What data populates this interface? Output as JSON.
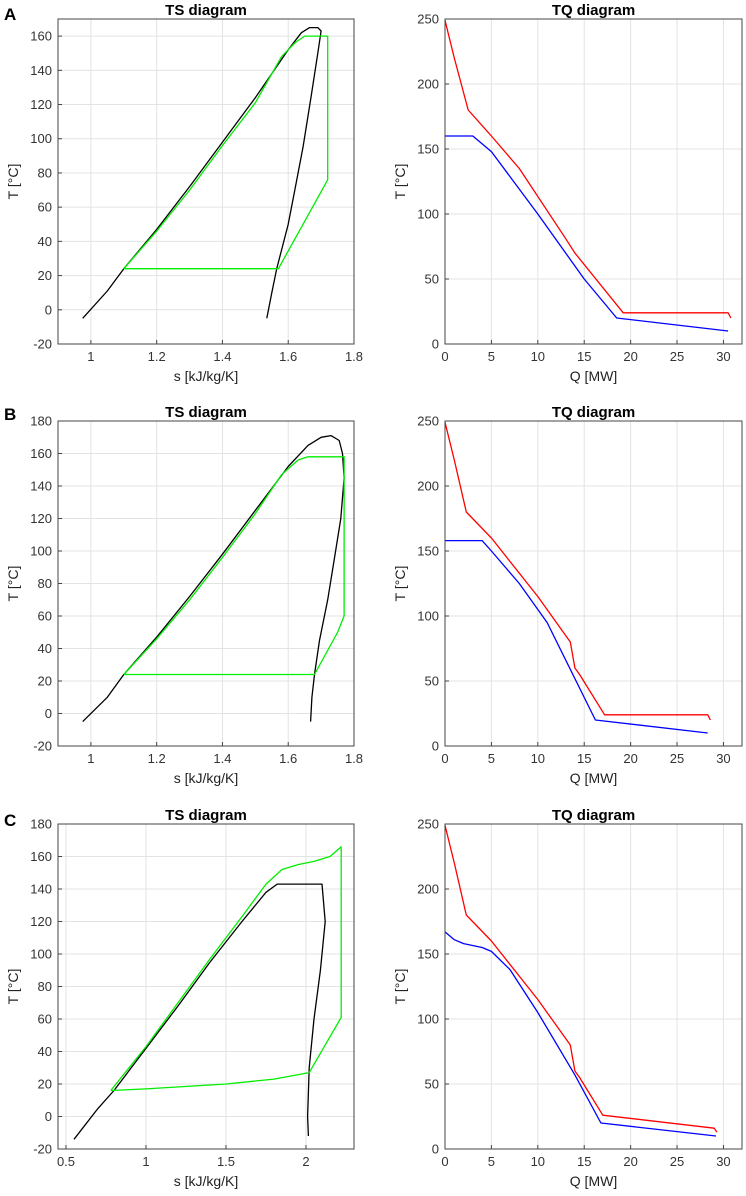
{
  "panel_labels": [
    "A",
    "B",
    "C"
  ],
  "chart_data": [
    {
      "id": "A-ts",
      "type": "line",
      "title": "TS diagram",
      "xlabel": "s [kJ/kg/K]",
      "ylabel": "T [°C]",
      "xlim": [
        0.9,
        1.8
      ],
      "ylim": [
        -20,
        170
      ],
      "xticks": [
        1,
        1.2,
        1.4,
        1.6,
        1.8
      ],
      "xtick_labels": [
        "1",
        "1.2",
        "1.4",
        "1.6",
        "1.8"
      ],
      "yticks": [
        -20,
        0,
        20,
        40,
        60,
        80,
        100,
        120,
        140,
        160
      ],
      "ytick_labels": [
        "-20",
        "0",
        "20",
        "40",
        "60",
        "80",
        "100",
        "120",
        "140",
        "160"
      ],
      "grid": true,
      "series": [
        {
          "name": "saturation dome",
          "color": "#000000",
          "points": [
            [
              0.975,
              -5
            ],
            [
              1.05,
              11
            ],
            [
              1.1,
              24
            ],
            [
              1.2,
              47
            ],
            [
              1.3,
              72
            ],
            [
              1.4,
              98
            ],
            [
              1.5,
              124
            ],
            [
              1.6,
              152
            ],
            [
              1.64,
              162
            ],
            [
              1.665,
              165
            ],
            [
              1.69,
              165
            ],
            [
              1.7,
              163
            ],
            [
              1.69,
              150
            ],
            [
              1.67,
              125
            ],
            [
              1.645,
              95
            ],
            [
              1.62,
              70
            ],
            [
              1.6,
              50
            ],
            [
              1.58,
              35
            ],
            [
              1.565,
              24
            ],
            [
              1.55,
              10
            ],
            [
              1.535,
              -5
            ]
          ]
        },
        {
          "name": "cycle",
          "color": "#00ee00",
          "points": [
            [
              1.1,
              24
            ],
            [
              1.2,
              46
            ],
            [
              1.3,
              70
            ],
            [
              1.4,
              96
            ],
            [
              1.5,
              121
            ],
            [
              1.58,
              148
            ],
            [
              1.62,
              156
            ],
            [
              1.65,
              160
            ],
            [
              1.72,
              160
            ],
            [
              1.72,
              76
            ],
            [
              1.57,
              24
            ],
            [
              1.1,
              24
            ]
          ]
        }
      ]
    },
    {
      "id": "A-tq",
      "type": "line",
      "title": "TQ diagram",
      "xlabel": "Q [MW]",
      "ylabel": "T [°C]",
      "xlim": [
        0,
        32
      ],
      "ylim": [
        0,
        250
      ],
      "xticks": [
        0,
        5,
        10,
        15,
        20,
        25,
        30
      ],
      "xtick_labels": [
        "0",
        "5",
        "10",
        "15",
        "20",
        "25",
        "30"
      ],
      "yticks": [
        0,
        50,
        100,
        150,
        200,
        250
      ],
      "ytick_labels": [
        "0",
        "50",
        "100",
        "150",
        "200",
        "250"
      ],
      "grid": true,
      "series": [
        {
          "name": "hot",
          "color": "#ff0000",
          "points": [
            [
              0,
              249
            ],
            [
              1,
              220
            ],
            [
              2.5,
              180
            ],
            [
              5,
              160
            ],
            [
              8,
              135
            ],
            [
              13,
              81
            ],
            [
              14,
              70
            ],
            [
              19.2,
              24
            ],
            [
              30.5,
              24
            ],
            [
              30.8,
              20
            ]
          ]
        },
        {
          "name": "cold",
          "color": "#0000ff",
          "points": [
            [
              0,
              160
            ],
            [
              3,
              160
            ],
            [
              5,
              148
            ],
            [
              10,
              100
            ],
            [
              15,
              50
            ],
            [
              18.5,
              20
            ],
            [
              30.5,
              10
            ]
          ]
        }
      ]
    },
    {
      "id": "B-ts",
      "type": "line",
      "title": "TS diagram",
      "xlabel": "s [kJ/kg/K]",
      "ylabel": "T [°C]",
      "xlim": [
        0.9,
        1.8
      ],
      "ylim": [
        -20,
        180
      ],
      "xticks": [
        1,
        1.2,
        1.4,
        1.6,
        1.8
      ],
      "xtick_labels": [
        "1",
        "1.2",
        "1.4",
        "1.6",
        "1.8"
      ],
      "yticks": [
        -20,
        0,
        20,
        40,
        60,
        80,
        100,
        120,
        140,
        160,
        180
      ],
      "ytick_labels": [
        "-20",
        "0",
        "20",
        "40",
        "60",
        "80",
        "100",
        "120",
        "140",
        "160",
        "180"
      ],
      "grid": true,
      "series": [
        {
          "name": "saturation dome",
          "color": "#000000",
          "points": [
            [
              0.975,
              -5
            ],
            [
              1.05,
              10
            ],
            [
              1.1,
              24
            ],
            [
              1.2,
              47
            ],
            [
              1.3,
              72
            ],
            [
              1.4,
              98
            ],
            [
              1.5,
              125
            ],
            [
              1.6,
              152
            ],
            [
              1.66,
              165
            ],
            [
              1.7,
              170
            ],
            [
              1.73,
              171
            ],
            [
              1.755,
              168
            ],
            [
              1.765,
              160
            ],
            [
              1.77,
              145
            ],
            [
              1.76,
              120
            ],
            [
              1.74,
              95
            ],
            [
              1.72,
              70
            ],
            [
              1.695,
              45
            ],
            [
              1.68,
              24
            ],
            [
              1.672,
              10
            ],
            [
              1.668,
              -5
            ]
          ]
        },
        {
          "name": "cycle",
          "color": "#00ee00",
          "points": [
            [
              1.1,
              24
            ],
            [
              1.2,
              46
            ],
            [
              1.3,
              70
            ],
            [
              1.4,
              96
            ],
            [
              1.5,
              123
            ],
            [
              1.58,
              147
            ],
            [
              1.63,
              156
            ],
            [
              1.66,
              158
            ],
            [
              1.77,
              158
            ],
            [
              1.77,
              60
            ],
            [
              1.75,
              50
            ],
            [
              1.68,
              24
            ],
            [
              1.1,
              24
            ]
          ]
        }
      ]
    },
    {
      "id": "B-tq",
      "type": "line",
      "title": "TQ diagram",
      "xlabel": "Q [MW]",
      "ylabel": "T [°C]",
      "xlim": [
        0,
        32
      ],
      "ylim": [
        0,
        250
      ],
      "xticks": [
        0,
        5,
        10,
        15,
        20,
        25,
        30
      ],
      "xtick_labels": [
        "0",
        "5",
        "10",
        "15",
        "20",
        "25",
        "30"
      ],
      "yticks": [
        0,
        50,
        100,
        150,
        200,
        250
      ],
      "ytick_labels": [
        "0",
        "50",
        "100",
        "150",
        "200",
        "250"
      ],
      "grid": true,
      "series": [
        {
          "name": "hot",
          "color": "#ff0000",
          "points": [
            [
              0,
              249
            ],
            [
              1,
              220
            ],
            [
              2.3,
              180
            ],
            [
              5,
              160
            ],
            [
              10,
              115
            ],
            [
              13.5,
              80
            ],
            [
              14,
              60
            ],
            [
              14.5,
              55
            ],
            [
              17.2,
              24
            ],
            [
              28.3,
              24
            ],
            [
              28.6,
              20
            ]
          ]
        },
        {
          "name": "cold",
          "color": "#0000ff",
          "points": [
            [
              0,
              158
            ],
            [
              4,
              158
            ],
            [
              5,
              150
            ],
            [
              8,
              125
            ],
            [
              11,
              95
            ],
            [
              16.2,
              20
            ],
            [
              28.3,
              10
            ]
          ]
        }
      ]
    },
    {
      "id": "C-ts",
      "type": "line",
      "title": "TS diagram",
      "xlabel": "s [kJ/kg/K]",
      "ylabel": "T [°C]",
      "xlim": [
        0.45,
        2.3
      ],
      "ylim": [
        -20,
        180
      ],
      "xticks": [
        0.5,
        1,
        1.5,
        2
      ],
      "xtick_labels": [
        "0.5",
        "1",
        "1.5",
        "2"
      ],
      "yticks": [
        -20,
        0,
        20,
        40,
        60,
        80,
        100,
        120,
        140,
        160,
        180
      ],
      "ytick_labels": [
        "-20",
        "0",
        "20",
        "40",
        "60",
        "80",
        "100",
        "120",
        "140",
        "160",
        "180"
      ],
      "grid": true,
      "series": [
        {
          "name": "saturation dome",
          "color": "#000000",
          "points": [
            [
              0.55,
              -14
            ],
            [
              0.7,
              5
            ],
            [
              0.8,
              16
            ],
            [
              1,
              42
            ],
            [
              1.2,
              68
            ],
            [
              1.4,
              95
            ],
            [
              1.6,
              120
            ],
            [
              1.75,
              138
            ],
            [
              1.82,
              143
            ],
            [
              2.1,
              143
            ],
            [
              2.12,
              120
            ],
            [
              2.09,
              90
            ],
            [
              2.05,
              60
            ],
            [
              2.02,
              30
            ],
            [
              2.01,
              0
            ],
            [
              2.015,
              -12
            ]
          ]
        },
        {
          "name": "cycle",
          "color": "#00ee00",
          "points": [
            [
              0.78,
              16
            ],
            [
              1,
              43
            ],
            [
              1.2,
              70
            ],
            [
              1.4,
              97
            ],
            [
              1.6,
              123
            ],
            [
              1.75,
              143
            ],
            [
              1.85,
              152
            ],
            [
              1.95,
              155
            ],
            [
              2.05,
              157
            ],
            [
              2.15,
              160
            ],
            [
              2.22,
              166
            ],
            [
              2.22,
              61
            ],
            [
              2.02,
              27
            ],
            [
              1.8,
              23
            ],
            [
              1.5,
              20
            ],
            [
              1.0,
              17
            ],
            [
              0.78,
              16
            ]
          ]
        }
      ]
    },
    {
      "id": "C-tq",
      "type": "line",
      "title": "TQ diagram",
      "xlabel": "Q [MW]",
      "ylabel": "T [°C]",
      "xlim": [
        0,
        32
      ],
      "ylim": [
        0,
        250
      ],
      "xticks": [
        0,
        5,
        10,
        15,
        20,
        25,
        30
      ],
      "xtick_labels": [
        "0",
        "5",
        "10",
        "15",
        "20",
        "25",
        "30"
      ],
      "yticks": [
        0,
        50,
        100,
        150,
        200,
        250
      ],
      "ytick_labels": [
        "0",
        "50",
        "100",
        "150",
        "200",
        "250"
      ],
      "grid": true,
      "series": [
        {
          "name": "hot",
          "color": "#ff0000",
          "points": [
            [
              0,
              249
            ],
            [
              1,
              220
            ],
            [
              2.3,
              180
            ],
            [
              5,
              160
            ],
            [
              10,
              115
            ],
            [
              13.5,
              80
            ],
            [
              14,
              60
            ],
            [
              14.5,
              55
            ],
            [
              17,
              26
            ],
            [
              29,
              16
            ],
            [
              29.3,
              13
            ]
          ]
        },
        {
          "name": "cold",
          "color": "#0000ff",
          "points": [
            [
              0,
              167
            ],
            [
              1,
              161
            ],
            [
              2,
              158
            ],
            [
              4,
              155
            ],
            [
              5,
              152
            ],
            [
              7,
              138
            ],
            [
              10,
              105
            ],
            [
              14,
              57
            ],
            [
              16.8,
              20
            ],
            [
              29.2,
              10
            ]
          ]
        }
      ]
    }
  ]
}
